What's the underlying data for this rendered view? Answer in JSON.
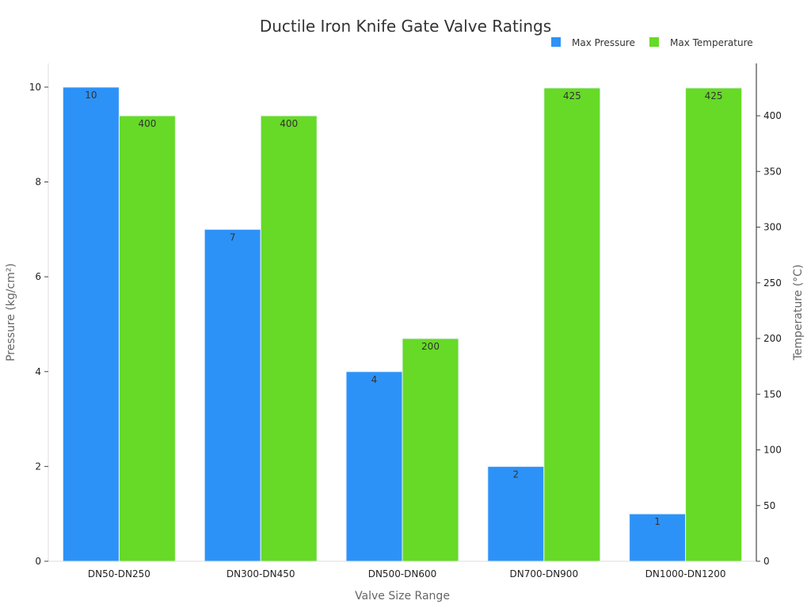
{
  "chart_data": {
    "type": "bar",
    "title": "Ductile Iron Knife Gate Valve Ratings",
    "xlabel": "Valve Size Range",
    "ylabel": "Pressure (kg/cm²)",
    "y2label": "Temperature (°C)",
    "categories": [
      "DN50-DN250",
      "DN300-DN450",
      "DN500-DN600",
      "DN700-DN900",
      "DN1000-DN1200"
    ],
    "series": [
      {
        "name": "Max Pressure",
        "axis": "left",
        "color": "#2d92f7",
        "values": [
          10,
          7,
          4,
          2,
          1
        ]
      },
      {
        "name": "Max Temperature",
        "axis": "right",
        "color": "#66da26",
        "values": [
          400,
          400,
          200,
          425,
          425
        ]
      }
    ],
    "ylim": [
      0,
      10.5
    ],
    "y2lim": [
      0,
      447
    ],
    "yticks": [
      0,
      2,
      4,
      6,
      8,
      10
    ],
    "y2ticks": [
      0,
      50,
      100,
      150,
      200,
      250,
      300,
      350,
      400
    ],
    "grid": false,
    "legend": "top-right",
    "data_labels": true
  }
}
